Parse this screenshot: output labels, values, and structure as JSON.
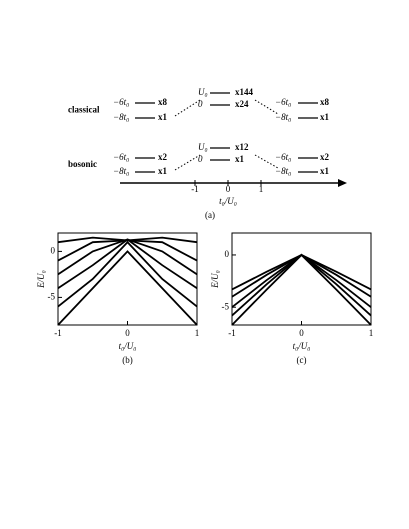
{
  "diagram": {
    "rows": [
      {
        "label": "classical",
        "left": [
          {
            "energy": "−6t₀",
            "count": "x8"
          },
          {
            "energy": "−8t₀",
            "count": "x1"
          }
        ],
        "center": [
          {
            "energy": "U₀",
            "count": "x144"
          },
          {
            "energy": "0",
            "count": "x24"
          }
        ],
        "right": [
          {
            "energy": "−6t₀",
            "count": "x8"
          },
          {
            "energy": "−8t₀",
            "count": "x1"
          }
        ]
      },
      {
        "label": "bosonic",
        "left": [
          {
            "energy": "−6t₀",
            "count": "x2"
          },
          {
            "energy": "−8t₀",
            "count": "x1"
          }
        ],
        "center": [
          {
            "energy": "U₀",
            "count": "x12"
          },
          {
            "energy": "0",
            "count": "x1"
          }
        ],
        "right": [
          {
            "energy": "−6t₀",
            "count": "x2"
          },
          {
            "energy": "−8t₀",
            "count": "x1"
          }
        ]
      }
    ],
    "axis_ticks": [
      -1,
      0,
      1
    ],
    "axis_label": "t₀/U₀",
    "caption": "(a)"
  },
  "chart_data": [
    {
      "type": "line",
      "caption": "(b)",
      "x_label": "t₀/U₀",
      "y_label": "E/U₀",
      "x": [
        -1,
        -0.5,
        0,
        0.5,
        1
      ],
      "xlim": [
        -1,
        1
      ],
      "xticks": [
        -1,
        0,
        1
      ],
      "ylim": [
        -8,
        2
      ],
      "yticks": [
        0,
        -5
      ],
      "series": [
        {
          "color": "#000000",
          "values": [
            -8,
            -4,
            0,
            -4,
            -8
          ]
        },
        {
          "color": "#000000",
          "values": [
            -6,
            -3,
            1,
            -3,
            -6
          ]
        },
        {
          "color": "#000000",
          "values": [
            -4,
            -1.5,
            1.3,
            -1.5,
            -4
          ]
        },
        {
          "color": "#000000",
          "values": [
            -2.5,
            0,
            1.3,
            0,
            -2.5
          ]
        },
        {
          "color": "#000000",
          "values": [
            -1,
            1,
            1.2,
            1,
            -1
          ]
        },
        {
          "color": "#000000",
          "values": [
            1,
            1.5,
            1.2,
            1.5,
            1
          ]
        }
      ]
    },
    {
      "type": "line",
      "caption": "(c)",
      "x_label": "t₀/U₀",
      "y_label": "E/U₀",
      "x": [
        -1,
        -0.5,
        0,
        0.5,
        1
      ],
      "xlim": [
        -1,
        1
      ],
      "xticks": [
        -1,
        0,
        1
      ],
      "ylim": [
        -6.7,
        2.1
      ],
      "yticks": [
        0,
        -5
      ],
      "series": [
        {
          "color": "#000000",
          "values": [
            -3.3,
            -1.6,
            0,
            -1.6,
            -3.3
          ]
        },
        {
          "color": "#000000",
          "values": [
            -4,
            -1.9,
            0,
            -1.9,
            -4
          ]
        },
        {
          "color": "#000000",
          "values": [
            -5,
            -2.4,
            0,
            -2.4,
            -5
          ]
        },
        {
          "color": "#000000",
          "values": [
            -5.8,
            -2.8,
            0,
            -2.8,
            -5.8
          ]
        },
        {
          "color": "#000000",
          "values": [
            -6.7,
            -3.3,
            0,
            -3.3,
            -6.7
          ]
        }
      ]
    }
  ]
}
